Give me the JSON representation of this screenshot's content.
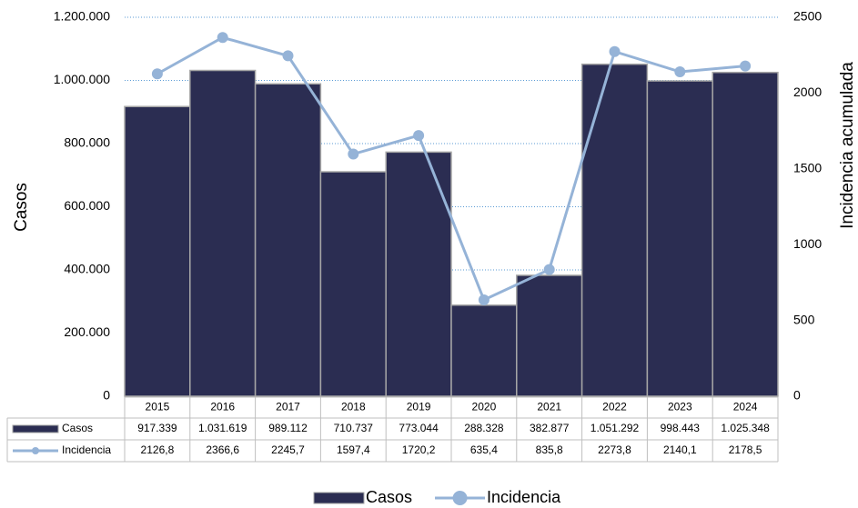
{
  "chart_data": {
    "type": "bar",
    "categories": [
      "2015",
      "2016",
      "2017",
      "2018",
      "2019",
      "2020",
      "2021",
      "2022",
      "2023",
      "2024"
    ],
    "series": [
      {
        "name": "Casos",
        "type": "bar",
        "color": "#2b2d52",
        "values": [
          917339,
          1031619,
          989112,
          710737,
          773044,
          288328,
          382877,
          1051292,
          998443,
          1025348
        ],
        "value_labels": [
          "917.339",
          "1.031.619",
          "989.112",
          "710.737",
          "773.044",
          "288.328",
          "382.877",
          "1.051.292",
          "998.443",
          "1.025.348"
        ]
      },
      {
        "name": "Incidencia",
        "type": "line",
        "axis": "y2",
        "color": "#95b3d7",
        "values": [
          2126.8,
          2366.6,
          2245.7,
          1597.4,
          1720.2,
          635.4,
          835.8,
          2273.8,
          2140.1,
          2178.5
        ],
        "value_labels": [
          "2126,8",
          "2366,6",
          "2245,7",
          "1597,4",
          "1720,2",
          "635,4",
          "835,8",
          "2273,8",
          "2140,1",
          "2178,5"
        ]
      }
    ],
    "ylabel": "Casos",
    "y2label": "Incidencia acumulada",
    "ylim": [
      0,
      1200000
    ],
    "yticks": [
      0,
      {
        "value": 200000,
        "label": "200.000"
      },
      {
        "value": 400000,
        "label": "400.000"
      },
      {
        "value": 600000,
        "label": "600.000"
      },
      {
        "value": 800000,
        "label": "800.000"
      },
      {
        "value": 1000000,
        "label": "1.000.000"
      },
      {
        "value": 1200000,
        "label": "1.200.000"
      }
    ],
    "y2lim": [
      0,
      2500
    ],
    "y2ticks": [
      0,
      500,
      1000,
      1500,
      2000,
      2500
    ],
    "grid": true,
    "legend": "bottom"
  }
}
